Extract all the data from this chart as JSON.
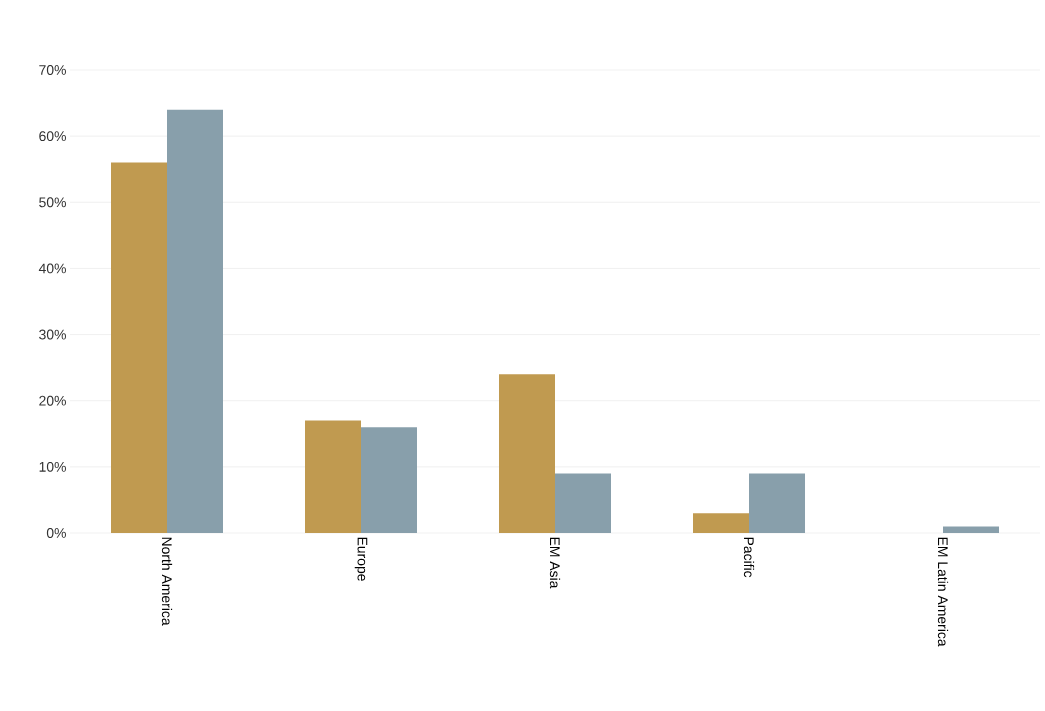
{
  "chart_data": {
    "type": "bar",
    "categories": [
      "North America",
      "Europe",
      "EM Asia",
      "Pacific",
      "EM Latin America"
    ],
    "series": [
      {
        "color": "#c09a50",
        "values": [
          56,
          17,
          24,
          3,
          0
        ]
      },
      {
        "color": "#889fab",
        "values": [
          64,
          16,
          9,
          9,
          1
        ]
      }
    ],
    "ylim": [
      0,
      70
    ],
    "yticks": [
      {
        "value": 0,
        "label": "0%"
      },
      {
        "value": 10,
        "label": "10%"
      },
      {
        "value": 20,
        "label": "20%"
      },
      {
        "value": 30,
        "label": "30%"
      },
      {
        "value": 40,
        "label": "40%"
      },
      {
        "value": 50,
        "label": "50%"
      },
      {
        "value": 60,
        "label": "60%"
      },
      {
        "value": 70,
        "label": "70%"
      }
    ],
    "grid": "y"
  }
}
